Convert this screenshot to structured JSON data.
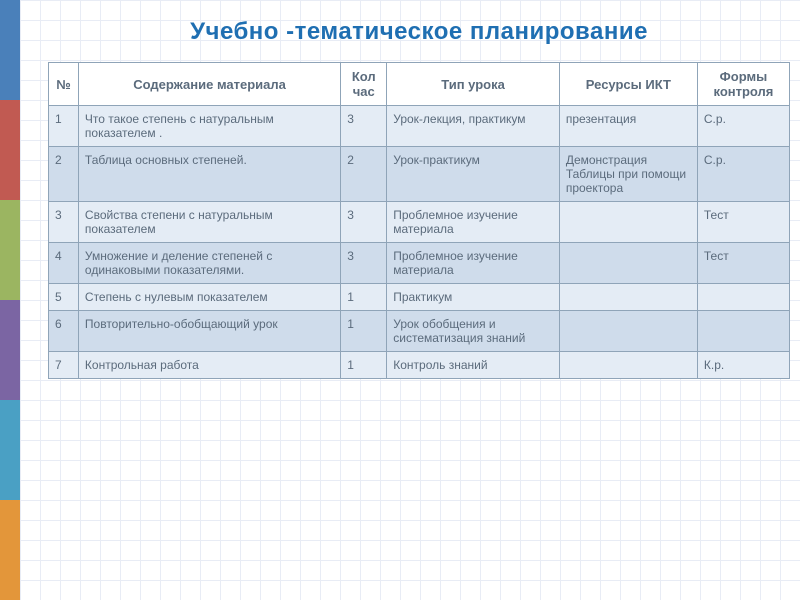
{
  "title": {
    "text": "Учебно -тематическое планирование",
    "color": "#1f6fb2",
    "fontsize": 24
  },
  "sidebar_colors": [
    "#4a80ba",
    "#c15a52",
    "#9bb561",
    "#7b65a3",
    "#4aa0c4",
    "#e3963a"
  ],
  "table": {
    "header_bg": "#ffffff",
    "row_bg_odd": "#e4ecf5",
    "row_bg_even": "#cfdceb",
    "border_color": "#8fa4b8",
    "text_color": "#5b6b7c",
    "columns": [
      "№",
      "Содержание материала",
      "Кол час",
      "Тип  урока",
      "Ресурсы ИКТ",
      "Формы контроля"
    ],
    "rows": [
      {
        "num": "1",
        "content": "Что такое степень  с натуральным показателем .",
        "hours": "3",
        "type": "Урок-лекция, практикум",
        "res": "презентация",
        "form": "С.р."
      },
      {
        "num": "2",
        "content": "Таблица основных степеней.",
        "hours": "2",
        "type": "Урок-практикум",
        "res": "Демонстрация Таблицы при помощи проектора",
        "form": "С.р."
      },
      {
        "num": "3",
        "content": "Свойства степени с натуральным показателем",
        "hours": "3",
        "type": "Проблемное изучение материала",
        "res": "",
        "form": "Тест"
      },
      {
        "num": "4",
        "content": "Умножение и деление степеней с одинаковыми показателями.",
        "hours": "3",
        "type": "Проблемное изучение материала",
        "res": "",
        "form": "Тест"
      },
      {
        "num": "5",
        "content": "Степень с нулевым показателем",
        "hours": "1",
        "type": "Практикум",
        "res": "",
        "form": ""
      },
      {
        "num": "6",
        "content": "Повторительно-обобщающий урок",
        "hours": "1",
        "type": "Урок обобщения и систематизация знаний",
        "res": "",
        "form": ""
      },
      {
        "num": "7",
        "content": "Контрольная работа",
        "hours": "1",
        "type": "Контроль знаний",
        "res": "",
        "form": "К.р."
      }
    ]
  }
}
